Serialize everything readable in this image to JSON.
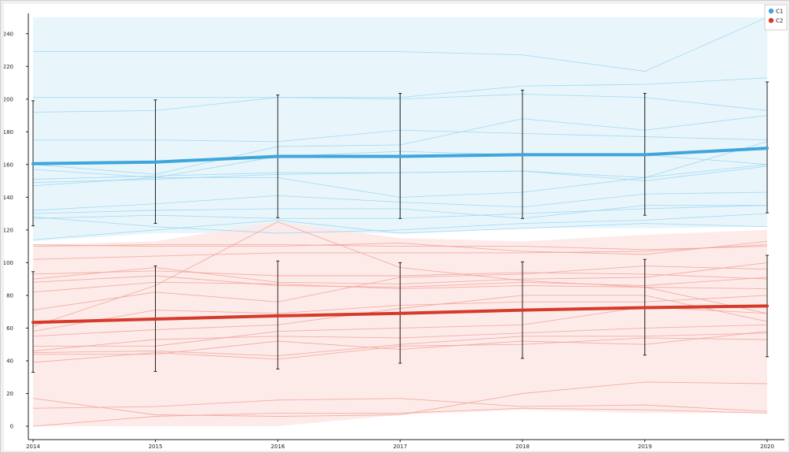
{
  "chart_data": {
    "type": "line",
    "x": [
      2014,
      2015,
      2016,
      2017,
      2018,
      2019,
      2020
    ],
    "ylim": [
      0,
      250
    ],
    "yticks": [
      0,
      20,
      40,
      60,
      80,
      100,
      120,
      140,
      160,
      180,
      200,
      220,
      240
    ],
    "xticks": [
      "2014",
      "2015",
      "2016",
      "2017",
      "2018",
      "2019",
      "2020"
    ],
    "grid": false,
    "legend": "top-right",
    "series": [
      {
        "name": "C1",
        "color": "#3ea6dc",
        "mean": [
          160.5,
          161.5,
          165,
          165,
          166,
          166,
          170
        ],
        "error_low": [
          122.5,
          124,
          127.5,
          127,
          127,
          129,
          130.5
        ],
        "error_high": [
          199,
          199.5,
          202.5,
          203.5,
          205.5,
          203.5,
          210.5
        ],
        "band_low": [
          113,
          118,
          118,
          118,
          121,
          121,
          122
        ],
        "band_high": [
          250,
          250,
          250,
          250,
          250,
          250,
          250
        ],
        "individual": [
          [
            229,
            229,
            229,
            229,
            227,
            217,
            250
          ],
          [
            201,
            201,
            201,
            201,
            208,
            209,
            213
          ],
          [
            192,
            193,
            201,
            200,
            203,
            201,
            193
          ],
          [
            175,
            175,
            174,
            181,
            179,
            177,
            175
          ],
          [
            160,
            154,
            171,
            172,
            188,
            181,
            190
          ],
          [
            157,
            152,
            165,
            168,
            166,
            166,
            160
          ],
          [
            151,
            153,
            155,
            155,
            156,
            152,
            174
          ],
          [
            149,
            151,
            154,
            155,
            156,
            150,
            159
          ],
          [
            147,
            152,
            152,
            140,
            143,
            152,
            160
          ],
          [
            132,
            136,
            141,
            137,
            134,
            142,
            143
          ],
          [
            130,
            132,
            133,
            133,
            127,
            135,
            135
          ],
          [
            128,
            122,
            118,
            120,
            124,
            126,
            130
          ],
          [
            127,
            129,
            127,
            127,
            130,
            133,
            135
          ],
          [
            114,
            120,
            126,
            118,
            121,
            124,
            122
          ]
        ]
      },
      {
        "name": "C2",
        "color": "#d63a2a",
        "mean": [
          63.5,
          65.5,
          67.5,
          69,
          71,
          72.5,
          73.5
        ],
        "error_low": [
          33,
          33.5,
          35,
          38.5,
          41.5,
          43.5,
          42.5
        ],
        "error_high": [
          94.5,
          98,
          101,
          100,
          100.5,
          102,
          104.5
        ],
        "band_low": [
          0,
          0,
          0,
          7,
          10,
          8,
          8
        ],
        "band_high": [
          111,
          113,
          125,
          115,
          113,
          117,
          120
        ],
        "individual": [
          [
            111,
            110,
            110,
            112,
            107,
            105,
            113
          ],
          [
            110,
            111,
            111,
            110,
            110,
            108,
            110
          ],
          [
            102,
            104,
            106,
            106,
            106,
            107,
            111
          ],
          [
            93,
            95,
            92,
            92,
            94,
            93,
            90
          ],
          [
            90,
            97,
            88,
            87,
            90,
            91,
            100
          ],
          [
            88,
            92,
            86,
            85,
            88,
            86,
            91
          ],
          [
            82,
            88,
            87,
            84,
            86,
            85,
            84
          ],
          [
            71,
            82,
            76,
            91,
            93,
            98,
            96
          ],
          [
            61,
            86,
            125,
            97,
            89,
            85,
            69
          ],
          [
            58,
            71,
            69,
            74,
            76,
            76,
            80
          ],
          [
            55,
            59,
            62,
            72,
            80,
            80,
            64
          ],
          [
            49,
            49,
            58,
            60,
            62,
            73,
            69
          ],
          [
            46,
            53,
            55,
            54,
            57,
            60,
            62
          ],
          [
            45,
            46,
            43,
            50,
            55,
            55,
            57
          ],
          [
            44,
            44,
            52,
            47,
            52,
            50,
            58
          ],
          [
            39,
            45,
            41,
            49,
            50,
            54,
            53
          ],
          [
            17,
            7,
            6,
            7,
            20,
            27,
            26
          ],
          [
            11,
            12,
            16,
            17,
            12,
            13,
            9
          ],
          [
            0,
            6,
            8,
            8,
            11,
            10,
            8
          ]
        ]
      }
    ]
  }
}
